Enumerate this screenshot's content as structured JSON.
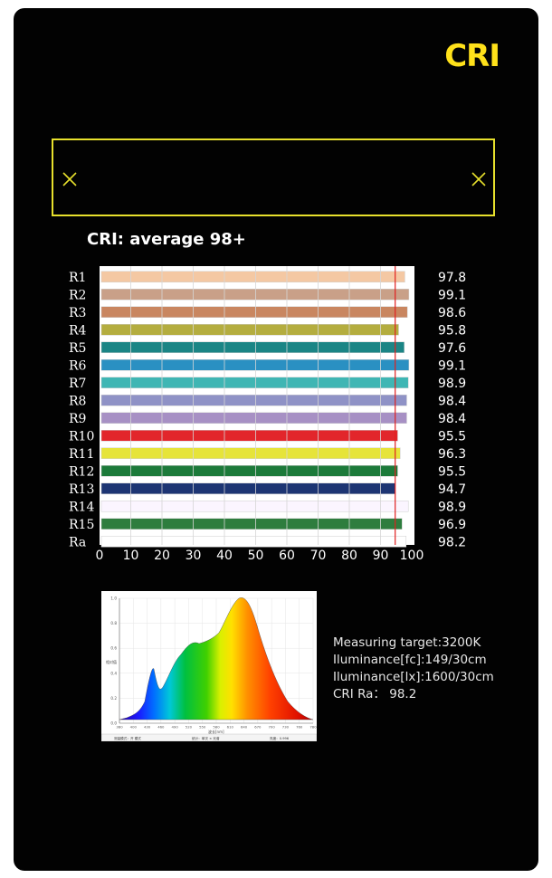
{
  "title": "CRI",
  "subtitle": "CRI: average 98+",
  "icons": {
    "left": "close-x-icon",
    "right": "close-x-icon"
  },
  "colors": {
    "accent": "#ffe11a",
    "background": "#020202",
    "reference_line": "#e02020"
  },
  "chart_data": {
    "type": "bar",
    "orientation": "horizontal",
    "categories": [
      "R1",
      "R2",
      "R3",
      "R4",
      "R5",
      "R6",
      "R7",
      "R8",
      "R9",
      "R10",
      "R11",
      "R12",
      "R13",
      "R14",
      "R15",
      "Ra"
    ],
    "values": [
      97.8,
      99.1,
      98.6,
      95.8,
      97.6,
      99.1,
      98.9,
      98.4,
      98.4,
      95.5,
      96.3,
      95.5,
      94.7,
      98.9,
      96.9,
      98.2
    ],
    "value_labels": [
      "97.8",
      "99.1",
      "98.6",
      "95.8",
      "97.6",
      "99.1",
      "98.9",
      "98.4",
      "98.4",
      "95.5",
      "96.3",
      "95.5",
      "94.7",
      "98.9",
      "96.9",
      "98.2"
    ],
    "bar_colors": [
      "#f4c8a3",
      "#c9a088",
      "#c98660",
      "#b4ad3f",
      "#1b8585",
      "#2a90c2",
      "#3fb6b4",
      "#8f92c6",
      "#a790c4",
      "#e2262b",
      "#e6e43a",
      "#1c7a3a",
      "#1d3573",
      "#fbf5ff",
      "#2e7d3e",
      "#ffffff"
    ],
    "xticks": [
      0,
      10,
      20,
      30,
      40,
      50,
      60,
      70,
      80,
      90,
      100
    ],
    "xlim": [
      0,
      100
    ],
    "reference_line": 94.7
  },
  "spectrum": {
    "ytick_labels": [
      "1.0",
      "0.8",
      "0.6",
      "0.4",
      "0.2",
      "0.0"
    ],
    "xtick_labels": [
      "380",
      "400",
      "430",
      "460",
      "490",
      "520",
      "550",
      "580",
      "610",
      "640",
      "670",
      "700",
      "730",
      "760",
      "780"
    ],
    "footer": [
      "测量模式：开 模式",
      "统计：单次  ×  光谱",
      "亮度：0.996"
    ]
  },
  "measurement": {
    "target": "Measuring target:3200K",
    "fc": "Iluminance[fc]:149/30cm",
    "lx": "Iluminance[lx]:1600/30cm",
    "ra": "CRI Ra： 98.2"
  }
}
